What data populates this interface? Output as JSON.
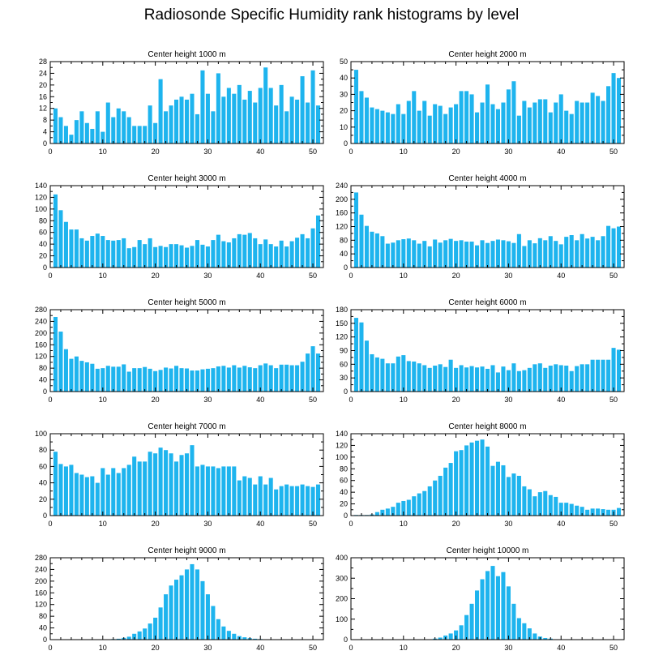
{
  "figure": {
    "title": "Radiosonde Specific Humidity rank histograms by level",
    "bar_color": "#1EB4EE",
    "x_ticks": [
      0,
      10,
      20,
      30,
      40,
      50
    ]
  },
  "chart_data": [
    {
      "type": "bar",
      "title": "Center height 1000 m",
      "xlim": [
        0,
        52
      ],
      "ylim": [
        0,
        28
      ],
      "y_ticks": [
        0,
        4,
        8,
        12,
        16,
        20,
        24,
        28
      ],
      "x": [
        1,
        2,
        3,
        4,
        5,
        6,
        7,
        8,
        9,
        10,
        11,
        12,
        13,
        14,
        15,
        16,
        17,
        18,
        19,
        20,
        21,
        22,
        23,
        24,
        25,
        26,
        27,
        28,
        29,
        30,
        31,
        32,
        33,
        34,
        35,
        36,
        37,
        38,
        39,
        40,
        41,
        42,
        43,
        44,
        45,
        46,
        47,
        48,
        49,
        50,
        51
      ],
      "values": [
        12,
        9,
        6,
        3,
        8,
        11,
        7,
        5,
        11,
        4,
        14,
        9,
        12,
        11,
        9,
        6,
        6,
        6,
        13,
        7,
        22,
        11,
        13,
        15,
        16,
        15,
        17,
        10,
        25,
        17,
        11,
        24,
        16,
        19,
        17,
        20,
        15,
        18,
        14,
        19,
        26,
        19,
        13,
        20,
        11,
        16,
        15,
        23,
        14,
        25,
        13
      ]
    },
    {
      "type": "bar",
      "title": "Center height 2000 m",
      "xlim": [
        0,
        52
      ],
      "ylim": [
        0,
        50
      ],
      "y_ticks": [
        0,
        10,
        20,
        30,
        40,
        50
      ],
      "x": [
        1,
        2,
        3,
        4,
        5,
        6,
        7,
        8,
        9,
        10,
        11,
        12,
        13,
        14,
        15,
        16,
        17,
        18,
        19,
        20,
        21,
        22,
        23,
        24,
        25,
        26,
        27,
        28,
        29,
        30,
        31,
        32,
        33,
        34,
        35,
        36,
        37,
        38,
        39,
        40,
        41,
        42,
        43,
        44,
        45,
        46,
        47,
        48,
        49,
        50,
        51
      ],
      "values": [
        45,
        32,
        28,
        22,
        21,
        20,
        19,
        18,
        24,
        18,
        26,
        32,
        20,
        26,
        17,
        24,
        23,
        18,
        22,
        24,
        32,
        32,
        30,
        19,
        25,
        36,
        24,
        21,
        25,
        33,
        38,
        17,
        26,
        22,
        25,
        27,
        27,
        19,
        25,
        30,
        20,
        18,
        26,
        25,
        25,
        31,
        29,
        26,
        35,
        43,
        40
      ]
    },
    {
      "type": "bar",
      "title": "Center height 3000 m",
      "xlim": [
        0,
        52
      ],
      "ylim": [
        0,
        140
      ],
      "y_ticks": [
        0,
        20,
        40,
        60,
        80,
        100,
        120,
        140
      ],
      "x": [
        1,
        2,
        3,
        4,
        5,
        6,
        7,
        8,
        9,
        10,
        11,
        12,
        13,
        14,
        15,
        16,
        17,
        18,
        19,
        20,
        21,
        22,
        23,
        24,
        25,
        26,
        27,
        28,
        29,
        30,
        31,
        32,
        33,
        34,
        35,
        36,
        37,
        38,
        39,
        40,
        41,
        42,
        43,
        44,
        45,
        46,
        47,
        48,
        49,
        50,
        51
      ],
      "values": [
        125,
        98,
        78,
        65,
        65,
        50,
        46,
        54,
        58,
        54,
        47,
        46,
        47,
        50,
        33,
        35,
        47,
        40,
        50,
        35,
        37,
        35,
        40,
        40,
        38,
        34,
        37,
        47,
        39,
        36,
        47,
        56,
        45,
        43,
        50,
        57,
        56,
        59,
        50,
        40,
        48,
        40,
        36,
        46,
        36,
        45,
        51,
        57,
        50,
        67,
        89
      ]
    },
    {
      "type": "bar",
      "title": "Center height 4000 m",
      "xlim": [
        0,
        52
      ],
      "ylim": [
        0,
        240
      ],
      "y_ticks": [
        0,
        40,
        80,
        120,
        160,
        200,
        240
      ],
      "x": [
        1,
        2,
        3,
        4,
        5,
        6,
        7,
        8,
        9,
        10,
        11,
        12,
        13,
        14,
        15,
        16,
        17,
        18,
        19,
        20,
        21,
        22,
        23,
        24,
        25,
        26,
        27,
        28,
        29,
        30,
        31,
        32,
        33,
        34,
        35,
        36,
        37,
        38,
        39,
        40,
        41,
        42,
        43,
        44,
        45,
        46,
        47,
        48,
        49,
        50,
        51
      ],
      "values": [
        220,
        155,
        122,
        105,
        100,
        92,
        70,
        73,
        80,
        83,
        85,
        80,
        70,
        78,
        62,
        82,
        73,
        80,
        84,
        78,
        80,
        76,
        76,
        65,
        80,
        72,
        78,
        82,
        80,
        77,
        72,
        98,
        63,
        80,
        71,
        86,
        80,
        92,
        78,
        68,
        90,
        95,
        80,
        98,
        85,
        90,
        80,
        92,
        122,
        115,
        120
      ]
    },
    {
      "type": "bar",
      "title": "Center height 5000 m",
      "xlim": [
        0,
        52
      ],
      "ylim": [
        0,
        280
      ],
      "y_ticks": [
        0,
        40,
        80,
        120,
        160,
        200,
        240,
        280
      ],
      "x": [
        1,
        2,
        3,
        4,
        5,
        6,
        7,
        8,
        9,
        10,
        11,
        12,
        13,
        14,
        15,
        16,
        17,
        18,
        19,
        20,
        21,
        22,
        23,
        24,
        25,
        26,
        27,
        28,
        29,
        30,
        31,
        32,
        33,
        34,
        35,
        36,
        37,
        38,
        39,
        40,
        41,
        42,
        43,
        44,
        45,
        46,
        47,
        48,
        49,
        50,
        51
      ],
      "values": [
        255,
        205,
        145,
        112,
        120,
        105,
        100,
        95,
        78,
        80,
        88,
        85,
        85,
        93,
        68,
        80,
        80,
        84,
        78,
        70,
        74,
        82,
        79,
        88,
        80,
        79,
        72,
        72,
        76,
        78,
        80,
        86,
        88,
        82,
        90,
        82,
        88,
        83,
        80,
        90,
        96,
        90,
        80,
        92,
        92,
        90,
        90,
        102,
        130,
        155,
        130
      ]
    },
    {
      "type": "bar",
      "title": "Center height 6000 m",
      "xlim": [
        0,
        52
      ],
      "ylim": [
        0,
        180
      ],
      "y_ticks": [
        0,
        30,
        60,
        90,
        120,
        150,
        180
      ],
      "x": [
        1,
        2,
        3,
        4,
        5,
        6,
        7,
        8,
        9,
        10,
        11,
        12,
        13,
        14,
        15,
        16,
        17,
        18,
        19,
        20,
        21,
        22,
        23,
        24,
        25,
        26,
        27,
        28,
        29,
        30,
        31,
        32,
        33,
        34,
        35,
        36,
        37,
        38,
        39,
        40,
        41,
        42,
        43,
        44,
        45,
        46,
        47,
        48,
        49,
        50,
        51
      ],
      "values": [
        162,
        152,
        112,
        82,
        75,
        72,
        62,
        62,
        77,
        80,
        67,
        66,
        62,
        58,
        52,
        57,
        60,
        54,
        70,
        52,
        58,
        53,
        56,
        53,
        55,
        50,
        58,
        42,
        55,
        47,
        62,
        45,
        47,
        52,
        60,
        62,
        52,
        57,
        60,
        58,
        57,
        45,
        56,
        60,
        60,
        70,
        70,
        70,
        70,
        96,
        92
      ]
    },
    {
      "type": "bar",
      "title": "Center height 7000 m",
      "xlim": [
        0,
        52
      ],
      "ylim": [
        0,
        100
      ],
      "y_ticks": [
        0,
        20,
        40,
        60,
        80,
        100
      ],
      "x": [
        1,
        2,
        3,
        4,
        5,
        6,
        7,
        8,
        9,
        10,
        11,
        12,
        13,
        14,
        15,
        16,
        17,
        18,
        19,
        20,
        21,
        22,
        23,
        24,
        25,
        26,
        27,
        28,
        29,
        30,
        31,
        32,
        33,
        34,
        35,
        36,
        37,
        38,
        39,
        40,
        41,
        42,
        43,
        44,
        45,
        46,
        47,
        48,
        49,
        50,
        51
      ],
      "values": [
        78,
        63,
        60,
        62,
        52,
        50,
        47,
        48,
        40,
        58,
        50,
        58,
        52,
        58,
        62,
        72,
        66,
        66,
        78,
        76,
        83,
        80,
        76,
        66,
        74,
        76,
        86,
        60,
        62,
        60,
        60,
        58,
        60,
        60,
        60,
        43,
        48,
        46,
        38,
        48,
        38,
        46,
        32,
        36,
        38,
        36,
        36,
        38,
        36,
        35,
        38
      ]
    },
    {
      "type": "bar",
      "title": "Center height 8000 m",
      "xlim": [
        0,
        52
      ],
      "ylim": [
        0,
        140
      ],
      "y_ticks": [
        0,
        20,
        40,
        60,
        80,
        100,
        120,
        140
      ],
      "x": [
        1,
        2,
        3,
        4,
        5,
        6,
        7,
        8,
        9,
        10,
        11,
        12,
        13,
        14,
        15,
        16,
        17,
        18,
        19,
        20,
        21,
        22,
        23,
        24,
        25,
        26,
        27,
        28,
        29,
        30,
        31,
        32,
        33,
        34,
        35,
        36,
        37,
        38,
        39,
        40,
        41,
        42,
        43,
        44,
        45,
        46,
        47,
        48,
        49,
        50,
        51
      ],
      "values": [
        1,
        1,
        1,
        2,
        6,
        10,
        12,
        15,
        22,
        25,
        27,
        33,
        38,
        42,
        50,
        60,
        68,
        82,
        90,
        110,
        112,
        120,
        125,
        128,
        130,
        118,
        85,
        92,
        86,
        66,
        72,
        68,
        50,
        45,
        33,
        40,
        42,
        35,
        32,
        22,
        22,
        20,
        17,
        15,
        10,
        12,
        12,
        11,
        10,
        10,
        13
      ]
    },
    {
      "type": "bar",
      "title": "Center height 9000 m",
      "xlim": [
        0,
        52
      ],
      "ylim": [
        0,
        280
      ],
      "y_ticks": [
        0,
        40,
        80,
        120,
        160,
        200,
        240,
        280
      ],
      "x": [
        1,
        2,
        3,
        4,
        5,
        6,
        7,
        8,
        9,
        10,
        11,
        12,
        13,
        14,
        15,
        16,
        17,
        18,
        19,
        20,
        21,
        22,
        23,
        24,
        25,
        26,
        27,
        28,
        29,
        30,
        31,
        32,
        33,
        34,
        35,
        36,
        37,
        38,
        39,
        40,
        41,
        42,
        43,
        44,
        45,
        46,
        47,
        48,
        49,
        50,
        51
      ],
      "values": [
        0,
        0,
        0,
        0,
        0,
        0,
        0,
        0,
        0,
        0,
        1,
        2,
        3,
        6,
        10,
        20,
        28,
        38,
        55,
        75,
        110,
        155,
        185,
        205,
        220,
        240,
        258,
        240,
        200,
        155,
        115,
        70,
        45,
        30,
        20,
        12,
        8,
        5,
        3,
        2,
        1,
        1,
        0,
        1,
        0,
        0,
        1,
        0,
        0,
        1,
        0
      ]
    },
    {
      "type": "bar",
      "title": "Center height 10000 m",
      "xlim": [
        0,
        52
      ],
      "ylim": [
        0,
        400
      ],
      "y_ticks": [
        0,
        100,
        200,
        300,
        400
      ],
      "x": [
        1,
        2,
        3,
        4,
        5,
        6,
        7,
        8,
        9,
        10,
        11,
        12,
        13,
        14,
        15,
        16,
        17,
        18,
        19,
        20,
        21,
        22,
        23,
        24,
        25,
        26,
        27,
        28,
        29,
        30,
        31,
        32,
        33,
        34,
        35,
        36,
        37,
        38,
        39,
        40,
        41,
        42,
        43,
        44,
        45,
        46,
        47,
        48,
        49,
        50,
        51
      ],
      "values": [
        0,
        0,
        0,
        0,
        0,
        0,
        0,
        0,
        0,
        0,
        0,
        0,
        0,
        0,
        2,
        5,
        10,
        20,
        30,
        45,
        70,
        120,
        175,
        240,
        295,
        335,
        360,
        310,
        330,
        260,
        175,
        105,
        80,
        55,
        30,
        15,
        8,
        5,
        2,
        1,
        1,
        0,
        0,
        0,
        0,
        0,
        0,
        0,
        0,
        0,
        0
      ]
    }
  ]
}
